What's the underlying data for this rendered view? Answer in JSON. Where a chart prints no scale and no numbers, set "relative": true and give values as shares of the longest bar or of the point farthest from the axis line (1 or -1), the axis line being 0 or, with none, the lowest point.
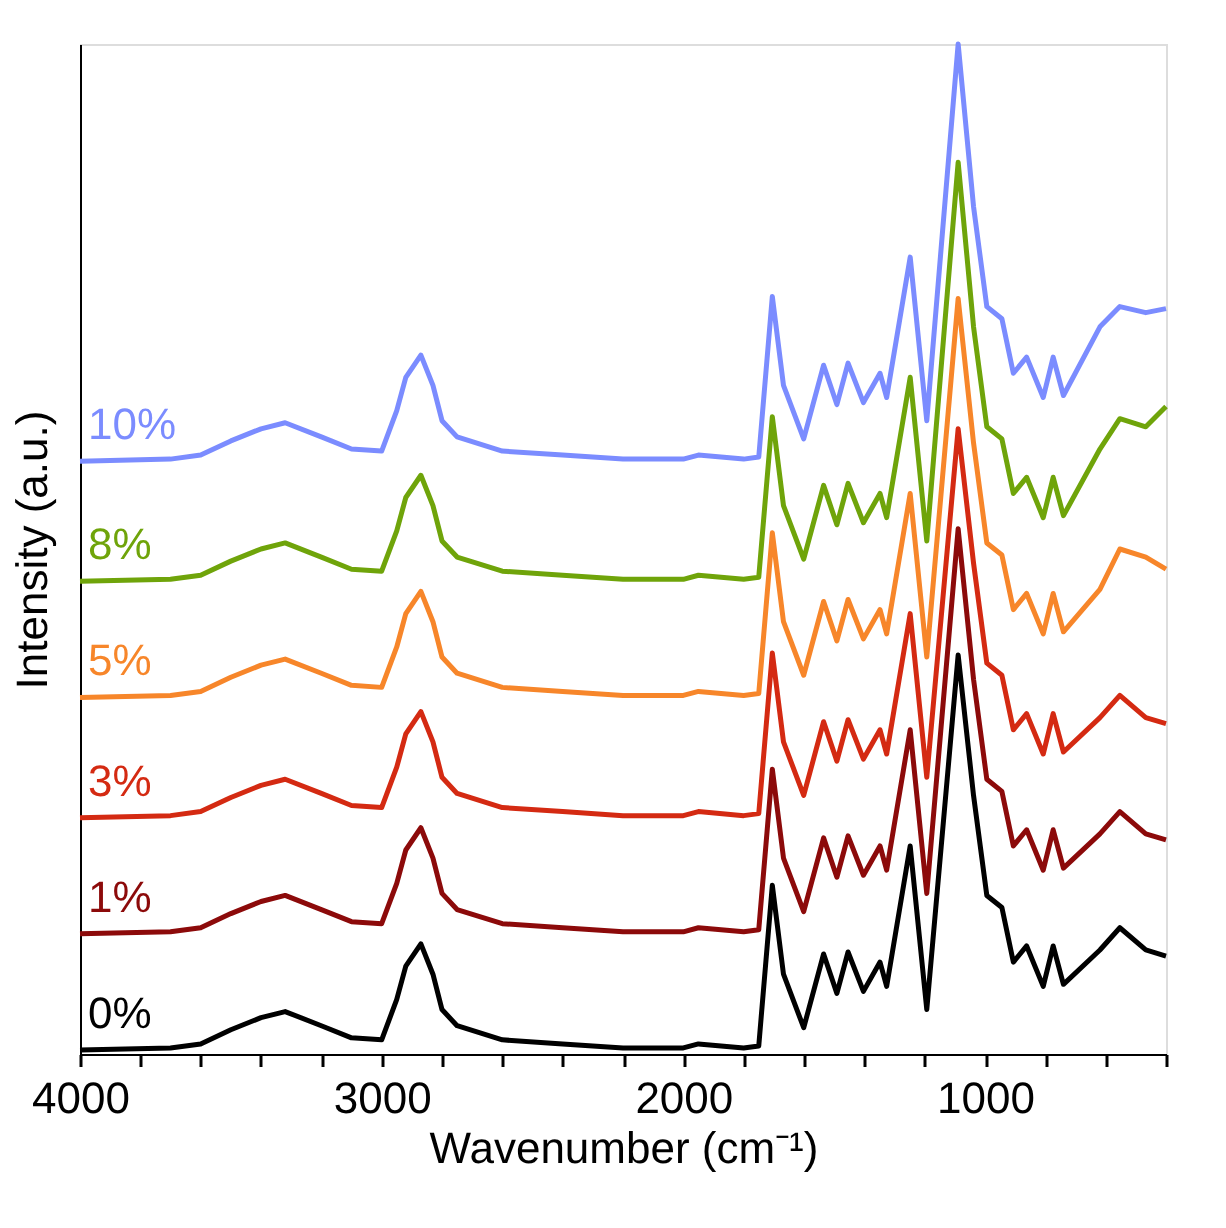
{
  "chart_data": {
    "type": "line",
    "relative": true,
    "xlabel": "Wavenumber (cm⁻¹)",
    "ylabel": "Intensity (a.u.)",
    "legend": false,
    "grid": false,
    "line_style": "solid",
    "marker": "none",
    "xlim": [
      4000,
      400
    ],
    "xticks": [
      4000,
      {
        "value": 3800,
        "label": null
      },
      {
        "value": 3600,
        "label": null
      },
      {
        "value": 3400,
        "label": null
      },
      {
        "value": 3200,
        "label": null
      },
      3000,
      {
        "value": 2800,
        "label": null
      },
      {
        "value": 2600,
        "label": null
      },
      {
        "value": 2400,
        "label": null
      },
      {
        "value": 2200,
        "label": null
      },
      2000,
      {
        "value": 1800,
        "label": null
      },
      {
        "value": 1600,
        "label": null
      },
      {
        "value": 1400,
        "label": null
      },
      {
        "value": 1200,
        "label": null
      },
      1000,
      {
        "value": 800,
        "label": null
      },
      {
        "value": 600,
        "label": null
      },
      {
        "value": 400,
        "label": null
      }
    ],
    "x": [
      4000,
      3700,
      3600,
      3500,
      3400,
      3320,
      3200,
      3100,
      3000,
      2950,
      2920,
      2870,
      2830,
      2800,
      2750,
      2600,
      2400,
      2200,
      2000,
      1950,
      1800,
      1750,
      1705,
      1668,
      1601,
      1535,
      1491,
      1454,
      1403,
      1348,
      1326,
      1248,
      1193,
      1089,
      1038,
      994,
      944,
      906,
      862,
      807,
      774,
      740,
      619,
      553,
      467,
      400
    ],
    "series": [
      {
        "name": "0%",
        "color": "#000000",
        "values": [
          0.004,
          0.006,
          0.01,
          0.024,
          0.036,
          0.042,
          0.028,
          0.016,
          0.014,
          0.054,
          0.087,
          0.109,
          0.079,
          0.044,
          0.028,
          0.014,
          0.01,
          0.006,
          0.006,
          0.01,
          0.006,
          0.008,
          0.167,
          0.079,
          0.026,
          0.099,
          0.06,
          0.101,
          0.062,
          0.091,
          0.067,
          0.206,
          0.044,
          0.395,
          0.256,
          0.157,
          0.145,
          0.091,
          0.107,
          0.067,
          0.107,
          0.069,
          0.103,
          0.125,
          0.103,
          0.097
        ]
      },
      {
        "name": "1%",
        "color": "#8c0a0a",
        "values": [
          0.119,
          0.121,
          0.125,
          0.139,
          0.151,
          0.157,
          0.143,
          0.131,
          0.129,
          0.169,
          0.202,
          0.224,
          0.194,
          0.159,
          0.143,
          0.129,
          0.125,
          0.121,
          0.121,
          0.125,
          0.121,
          0.123,
          0.282,
          0.194,
          0.141,
          0.214,
          0.175,
          0.216,
          0.177,
          0.206,
          0.182,
          0.321,
          0.159,
          0.52,
          0.371,
          0.272,
          0.26,
          0.206,
          0.222,
          0.182,
          0.222,
          0.184,
          0.218,
          0.24,
          0.218,
          0.212
        ]
      },
      {
        "name": "3%",
        "color": "#d42a12",
        "values": [
          0.234,
          0.236,
          0.24,
          0.254,
          0.266,
          0.272,
          0.258,
          0.246,
          0.244,
          0.284,
          0.317,
          0.339,
          0.309,
          0.274,
          0.258,
          0.244,
          0.24,
          0.236,
          0.236,
          0.24,
          0.236,
          0.238,
          0.397,
          0.309,
          0.256,
          0.329,
          0.29,
          0.331,
          0.292,
          0.321,
          0.297,
          0.436,
          0.274,
          0.619,
          0.486,
          0.387,
          0.375,
          0.321,
          0.337,
          0.297,
          0.337,
          0.299,
          0.333,
          0.355,
          0.333,
          0.327
        ]
      },
      {
        "name": "5%",
        "color": "#f7862a",
        "values": [
          0.353,
          0.355,
          0.359,
          0.373,
          0.385,
          0.391,
          0.377,
          0.365,
          0.363,
          0.403,
          0.436,
          0.458,
          0.428,
          0.393,
          0.377,
          0.363,
          0.359,
          0.355,
          0.355,
          0.359,
          0.355,
          0.357,
          0.516,
          0.428,
          0.375,
          0.448,
          0.409,
          0.45,
          0.411,
          0.44,
          0.416,
          0.555,
          0.393,
          0.748,
          0.605,
          0.506,
          0.494,
          0.44,
          0.456,
          0.416,
          0.456,
          0.418,
          0.46,
          0.5,
          0.492,
          0.48
        ]
      },
      {
        "name": "8%",
        "color": "#6fa40a",
        "values": [
          0.468,
          0.47,
          0.474,
          0.488,
          0.5,
          0.506,
          0.492,
          0.48,
          0.478,
          0.518,
          0.551,
          0.573,
          0.543,
          0.508,
          0.492,
          0.478,
          0.474,
          0.47,
          0.47,
          0.474,
          0.47,
          0.472,
          0.631,
          0.543,
          0.49,
          0.563,
          0.524,
          0.565,
          0.526,
          0.555,
          0.531,
          0.67,
          0.508,
          0.883,
          0.72,
          0.621,
          0.609,
          0.555,
          0.571,
          0.531,
          0.571,
          0.533,
          0.599,
          0.629,
          0.621,
          0.641
        ]
      },
      {
        "name": "10%",
        "color": "#7b8cff",
        "values": [
          0.587,
          0.589,
          0.593,
          0.607,
          0.619,
          0.625,
          0.611,
          0.599,
          0.597,
          0.637,
          0.67,
          0.692,
          0.662,
          0.627,
          0.611,
          0.597,
          0.593,
          0.589,
          0.589,
          0.593,
          0.589,
          0.591,
          0.75,
          0.662,
          0.609,
          0.682,
          0.643,
          0.684,
          0.645,
          0.674,
          0.65,
          0.789,
          0.627,
          1.0,
          0.839,
          0.74,
          0.728,
          0.674,
          0.69,
          0.65,
          0.69,
          0.652,
          0.72,
          0.74,
          0.734,
          0.738
        ]
      }
    ]
  }
}
